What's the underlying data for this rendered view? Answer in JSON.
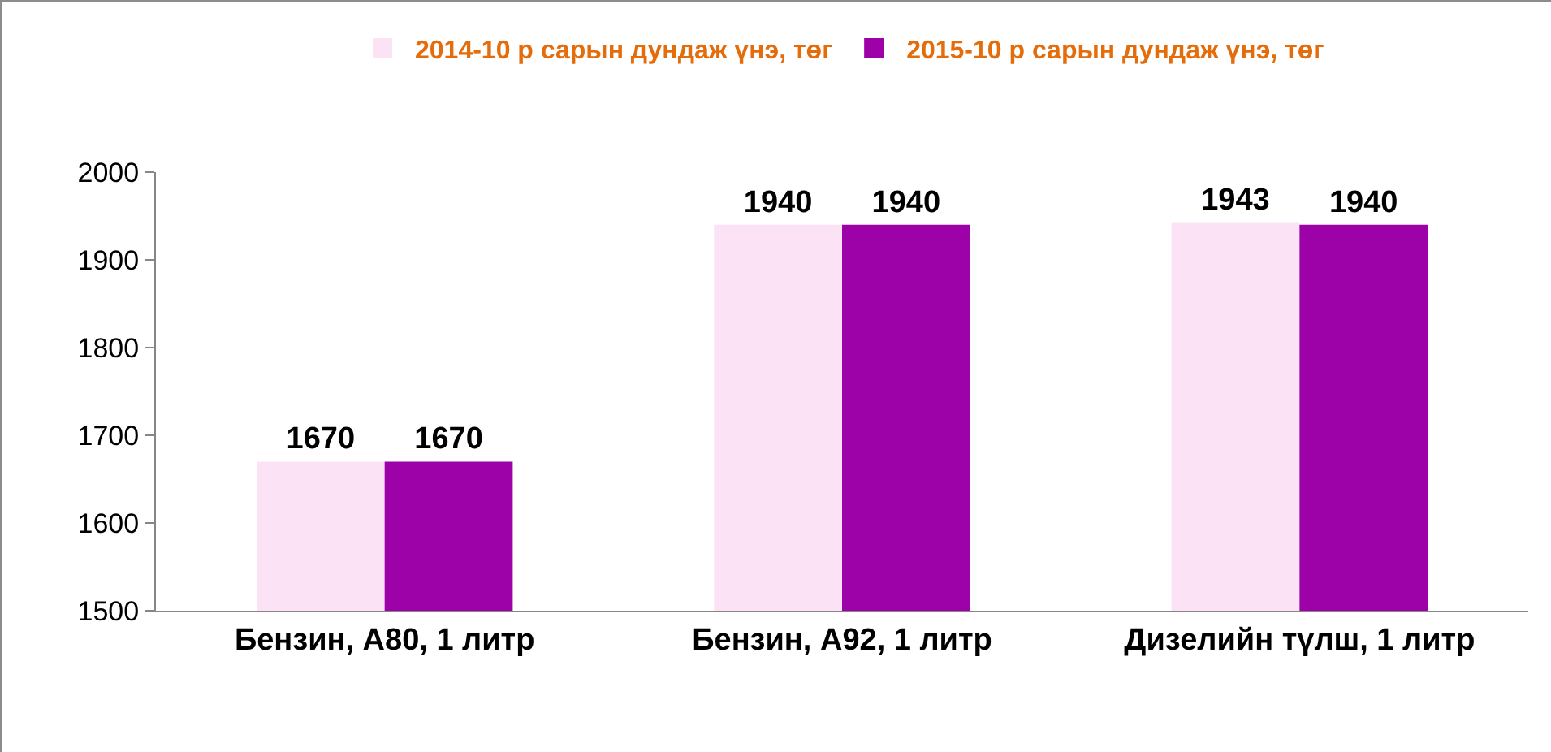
{
  "chart_data": {
    "type": "bar",
    "categories": [
      "Бензин, А80, 1 литр",
      "Бензин, А92, 1 литр",
      "Дизелийн түлш, 1 литр"
    ],
    "series": [
      {
        "name": "2014-10 р сарын дундаж үнэ, төг",
        "color": "#fbe3f5",
        "values": [
          1670,
          1940,
          1943
        ]
      },
      {
        "name": "2015-10 р сарын дундаж үнэ, төг",
        "color": "#9c02a7",
        "values": [
          1670,
          1940,
          1940
        ]
      }
    ],
    "ylim": [
      1500,
      2000
    ],
    "yticks": [
      1500,
      1600,
      1700,
      1800,
      1900,
      2000
    ],
    "data_labels": true,
    "legend": "top",
    "grid": false
  }
}
